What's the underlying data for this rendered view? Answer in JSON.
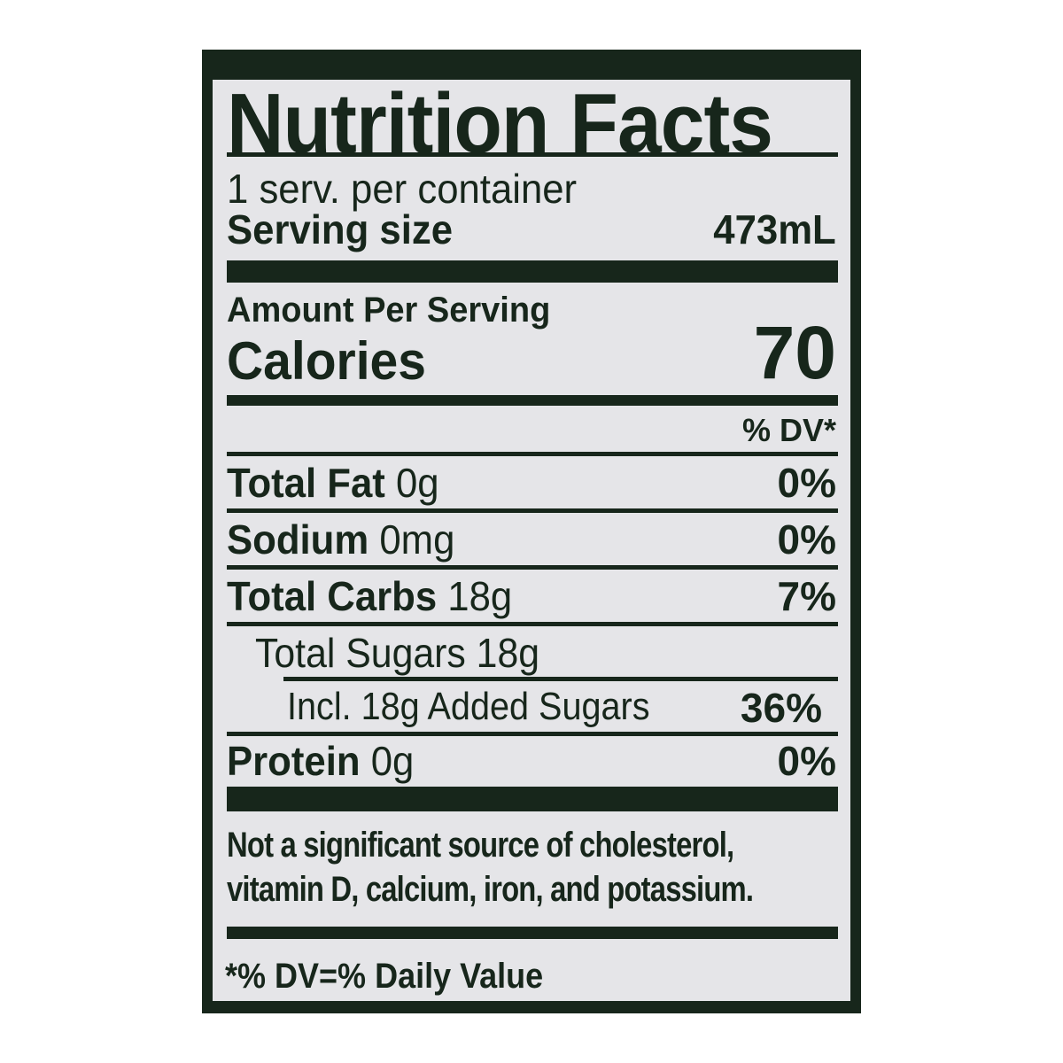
{
  "label": {
    "title": "Nutrition Facts",
    "servings_per_container": "1 serv. per container",
    "serving_size_label": "Serving size",
    "serving_size_value": "473mL",
    "amount_per_serving": "Amount Per Serving",
    "calories_label": "Calories",
    "calories_value": "70",
    "dv_header": "% DV*",
    "nutrients": [
      {
        "name": "Total Fat",
        "amount": "0g",
        "dv": "0%"
      },
      {
        "name": "Sodium",
        "amount": "0mg",
        "dv": "0%"
      },
      {
        "name": "Total Carbs",
        "amount": "18g",
        "dv": "7%"
      },
      {
        "name": "Total Sugars 18g",
        "amount": "",
        "dv": ""
      },
      {
        "name": "Incl. 18g Added Sugars",
        "amount": "",
        "dv": "36%"
      },
      {
        "name": "Protein",
        "amount": "0g",
        "dv": "0%"
      }
    ],
    "footnote_line1": "Not a significant source of cholesterol,",
    "footnote_line2": "vitamin D, calcium, iron, and potassium.",
    "dv_note": "*% DV=% Daily Value"
  },
  "colors": {
    "ink": "#17261b",
    "label_bg": "#e5e5e8"
  }
}
